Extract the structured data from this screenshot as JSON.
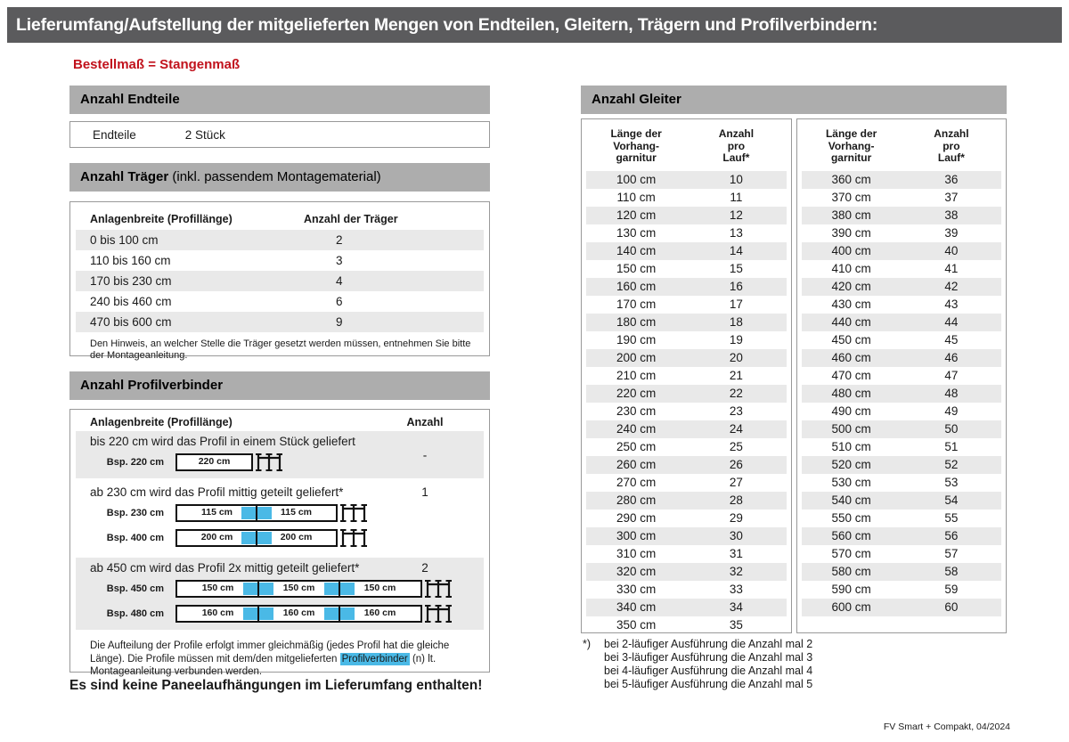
{
  "title": "Lieferumfang/Aufstellung der mitgelieferten Mengen von Endteilen, Gleitern, Trägern und Profilverbindern:",
  "subtitle": "Bestellmaß = Stangenmaß",
  "colors": {
    "title_bar": "#5b5b5d",
    "section_bar": "#adadad",
    "row_stripe": "#e9e9e9",
    "accent_red": "#c1121c",
    "accent_blue": "#4ab9e6"
  },
  "endteile": {
    "header": "Anzahl Endteile",
    "label": "Endteile",
    "value": "2 Stück"
  },
  "traeger": {
    "header_bold": "Anzahl Träger",
    "header_rest": " (inkl. passendem Montagematerial)",
    "columns": [
      "Anlagenbreite (Profillänge)",
      "Anzahl der Träger"
    ],
    "rows": [
      [
        "0 bis 100 cm",
        "2"
      ],
      [
        "110 bis 160 cm",
        "3"
      ],
      [
        "170 bis 230 cm",
        "4"
      ],
      [
        "240 bis 460 cm",
        "6"
      ],
      [
        "470 bis 600 cm",
        "9"
      ]
    ],
    "note": "Den Hinweis, an welcher Stelle die Träger gesetzt werden müssen, entnehmen Sie bitte der Montageanleitung."
  },
  "profilverbinder": {
    "header": "Anzahl Profilverbinder",
    "columns": [
      "Anlagenbreite (Profillänge)",
      "Anzahl"
    ],
    "blocks": [
      {
        "shaded": true,
        "center_anzahl": true,
        "text": "bis 220 cm wird das Profil in einem Stück geliefert",
        "anzahl": "-",
        "examples": [
          {
            "label": "Bsp. 220 cm",
            "segments": [
              "220 cm"
            ]
          }
        ]
      },
      {
        "shaded": false,
        "center_anzahl": false,
        "text": "ab 230 cm wird das Profil mittig geteilt geliefert*",
        "anzahl": "1",
        "examples": [
          {
            "label": "Bsp. 230 cm",
            "segments": [
              "115 cm",
              "115 cm"
            ]
          },
          {
            "label": "Bsp. 400 cm",
            "segments": [
              "200 cm",
              "200 cm"
            ]
          }
        ]
      },
      {
        "shaded": true,
        "center_anzahl": false,
        "text": "ab 450 cm wird das Profil 2x mittig geteilt geliefert*",
        "anzahl": "2",
        "examples": [
          {
            "label": "Bsp. 450 cm",
            "segments": [
              "150 cm",
              "150 cm",
              "150 cm"
            ]
          },
          {
            "label": "Bsp. 480 cm",
            "segments": [
              "160 cm",
              "160 cm",
              "160 cm"
            ]
          }
        ]
      }
    ],
    "note": {
      "before": "Die Aufteilung der Profile erfolgt immer gleichmäßig (jedes Profil hat die gleiche Länge). Die Profile müssen mit dem/den mitgelieferten ",
      "highlight": "Profilverbinder",
      "after": " (n) lt. Montageanleitung verbunden werden."
    }
  },
  "warning": "Es sind keine Paneelaufhängungen im Lieferumfang enthalten!",
  "gleiter": {
    "header": "Anzahl Gleiter",
    "column1_lines": [
      "Länge der",
      "Vorhang-",
      "garnitur"
    ],
    "column2_lines": [
      "Anzahl",
      "pro",
      "Lauf*"
    ],
    "table1": [
      [
        "100 cm",
        "10"
      ],
      [
        "110 cm",
        "11"
      ],
      [
        "120 cm",
        "12"
      ],
      [
        "130 cm",
        "13"
      ],
      [
        "140 cm",
        "14"
      ],
      [
        "150 cm",
        "15"
      ],
      [
        "160 cm",
        "16"
      ],
      [
        "170 cm",
        "17"
      ],
      [
        "180 cm",
        "18"
      ],
      [
        "190 cm",
        "19"
      ],
      [
        "200 cm",
        "20"
      ],
      [
        "210 cm",
        "21"
      ],
      [
        "220 cm",
        "22"
      ],
      [
        "230 cm",
        "23"
      ],
      [
        "240 cm",
        "24"
      ],
      [
        "250 cm",
        "25"
      ],
      [
        "260 cm",
        "26"
      ],
      [
        "270 cm",
        "27"
      ],
      [
        "280 cm",
        "28"
      ],
      [
        "290 cm",
        "29"
      ],
      [
        "300 cm",
        "30"
      ],
      [
        "310 cm",
        "31"
      ],
      [
        "320 cm",
        "32"
      ],
      [
        "330 cm",
        "33"
      ],
      [
        "340 cm",
        "34"
      ],
      [
        "350 cm",
        "35"
      ]
    ],
    "table2": [
      [
        "360 cm",
        "36"
      ],
      [
        "370 cm",
        "37"
      ],
      [
        "380 cm",
        "38"
      ],
      [
        "390 cm",
        "39"
      ],
      [
        "400 cm",
        "40"
      ],
      [
        "410 cm",
        "41"
      ],
      [
        "420 cm",
        "42"
      ],
      [
        "430 cm",
        "43"
      ],
      [
        "440 cm",
        "44"
      ],
      [
        "450 cm",
        "45"
      ],
      [
        "460 cm",
        "46"
      ],
      [
        "470 cm",
        "47"
      ],
      [
        "480 cm",
        "48"
      ],
      [
        "490 cm",
        "49"
      ],
      [
        "500 cm",
        "50"
      ],
      [
        "510 cm",
        "51"
      ],
      [
        "520 cm",
        "52"
      ],
      [
        "530 cm",
        "53"
      ],
      [
        "540 cm",
        "54"
      ],
      [
        "550 cm",
        "55"
      ],
      [
        "560 cm",
        "56"
      ],
      [
        "570 cm",
        "57"
      ],
      [
        "580 cm",
        "58"
      ],
      [
        "590 cm",
        "59"
      ],
      [
        "600 cm",
        "60"
      ]
    ],
    "footnote_marker": "*)",
    "footnotes": [
      "bei 2-läufiger Ausführung die Anzahl mal 2",
      "bei 3-läufiger Ausführung die Anzahl mal 3",
      "bei 4-läufiger Ausführung die Anzahl mal 4",
      "bei 5-läufiger Ausführung die Anzahl mal 5"
    ]
  },
  "footer": "FV Smart + Compakt, 04/2024"
}
